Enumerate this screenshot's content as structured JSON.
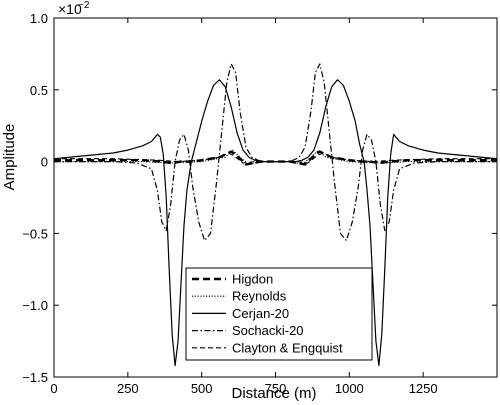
{
  "chart_data": {
    "type": "line",
    "xlabel": "Distance (m)",
    "ylabel": "Amplitude",
    "scale_note": "×10",
    "scale_exponent": "−2",
    "xlim": [
      0,
      1500
    ],
    "ylim": [
      -1.5,
      1.0
    ],
    "x_ticks": [
      0,
      250,
      500,
      750,
      1000,
      1250
    ],
    "x_tick_labels": [
      "0",
      "250",
      "500",
      "750",
      "1000",
      "1250"
    ],
    "y_ticks": [
      -1.5,
      -1.0,
      -0.5,
      0,
      0.5,
      1.0
    ],
    "y_tick_labels": [
      "−1.5",
      "−1.0",
      "−0.5",
      "0",
      "0.5",
      "1.0"
    ],
    "legend_position": "bottom-center",
    "series": [
      {
        "name": "Higdon",
        "style": "dashed-bold",
        "x": [
          0,
          300,
          360,
          400,
          430,
          460,
          500,
          560,
          600,
          620,
          650,
          700,
          750,
          800,
          850,
          880,
          900,
          940,
          1000,
          1040,
          1070,
          1100,
          1140,
          1200,
          1500
        ],
        "y": [
          0.01,
          0.01,
          0.0,
          -0.01,
          0.0,
          0.0,
          0.01,
          0.03,
          0.07,
          0.04,
          -0.02,
          0.0,
          0.0,
          0.0,
          -0.02,
          0.04,
          0.07,
          0.03,
          0.01,
          0.0,
          0.0,
          -0.01,
          0.0,
          0.01,
          0.01
        ]
      },
      {
        "name": "Reynolds",
        "style": "dotted",
        "x": [
          0,
          300,
          400,
          500,
          580,
          605,
          630,
          660,
          700,
          750,
          800,
          840,
          870,
          895,
          920,
          1000,
          1100,
          1200,
          1500
        ],
        "y": [
          0.0,
          0.0,
          -0.01,
          0.0,
          0.03,
          0.08,
          0.03,
          -0.02,
          0.0,
          0.0,
          0.0,
          -0.02,
          0.03,
          0.08,
          0.03,
          0.0,
          -0.01,
          0.0,
          0.0
        ]
      },
      {
        "name": "Cerjan-20",
        "style": "solid",
        "x": [
          0,
          100,
          200,
          250,
          300,
          330,
          350,
          360,
          370,
          380,
          390,
          400,
          410,
          420,
          430,
          440,
          450,
          465,
          480,
          500,
          520,
          540,
          560,
          580,
          600,
          620,
          640,
          660,
          680,
          700,
          720,
          750,
          780,
          800,
          820,
          840,
          860,
          880,
          900,
          920,
          940,
          960,
          980,
          1000,
          1020,
          1035,
          1050,
          1060,
          1070,
          1080,
          1090,
          1100,
          1110,
          1120,
          1130,
          1140,
          1150,
          1170,
          1200,
          1250,
          1300,
          1400,
          1500
        ],
        "y": [
          0.02,
          0.04,
          0.06,
          0.08,
          0.11,
          0.14,
          0.19,
          0.17,
          0.05,
          -0.25,
          -0.75,
          -1.2,
          -1.42,
          -1.25,
          -0.85,
          -0.45,
          -0.2,
          0.0,
          0.12,
          0.28,
          0.42,
          0.53,
          0.57,
          0.52,
          0.38,
          0.2,
          0.08,
          0.03,
          0.01,
          0.0,
          0.0,
          0.0,
          0.0,
          0.0,
          0.0,
          0.01,
          0.03,
          0.08,
          0.2,
          0.38,
          0.52,
          0.57,
          0.53,
          0.42,
          0.28,
          0.12,
          0.0,
          -0.2,
          -0.45,
          -0.85,
          -1.25,
          -1.42,
          -1.2,
          -0.75,
          -0.25,
          0.05,
          0.19,
          0.14,
          0.11,
          0.08,
          0.06,
          0.04,
          0.02
        ]
      },
      {
        "name": "Sochacki-20",
        "style": "dashdot",
        "x": [
          0,
          100,
          200,
          280,
          330,
          350,
          365,
          380,
          395,
          410,
          425,
          440,
          455,
          470,
          490,
          510,
          530,
          550,
          570,
          585,
          600,
          615,
          630,
          650,
          670,
          690,
          710,
          730,
          750,
          770,
          790,
          810,
          830,
          850,
          870,
          885,
          900,
          915,
          930,
          950,
          970,
          990,
          1010,
          1030,
          1045,
          1060,
          1075,
          1090,
          1105,
          1120,
          1135,
          1150,
          1170,
          1220,
          1300,
          1400,
          1500
        ],
        "y": [
          0.0,
          0.0,
          0.0,
          -0.01,
          -0.05,
          -0.2,
          -0.42,
          -0.48,
          -0.3,
          0.0,
          0.15,
          0.19,
          0.08,
          -0.18,
          -0.42,
          -0.55,
          -0.5,
          -0.15,
          0.25,
          0.55,
          0.68,
          0.62,
          0.35,
          0.1,
          0.03,
          0.01,
          0.0,
          0.0,
          0.0,
          0.0,
          0.0,
          0.01,
          0.03,
          0.1,
          0.35,
          0.62,
          0.68,
          0.55,
          0.25,
          -0.15,
          -0.5,
          -0.55,
          -0.42,
          -0.18,
          0.08,
          0.19,
          0.15,
          0.0,
          -0.3,
          -0.48,
          -0.42,
          -0.2,
          -0.05,
          -0.01,
          0.0,
          0.0,
          0.0
        ]
      },
      {
        "name": "Clayton & Engquist",
        "style": "dashed",
        "x": [
          0,
          200,
          350,
          420,
          500,
          560,
          590,
          610,
          640,
          680,
          750,
          820,
          860,
          890,
          910,
          940,
          1000,
          1080,
          1150,
          1300,
          1500
        ],
        "y": [
          0.02,
          0.02,
          0.01,
          0.0,
          0.01,
          0.03,
          0.06,
          0.04,
          -0.01,
          0.0,
          0.0,
          0.0,
          -0.01,
          0.04,
          0.06,
          0.03,
          0.01,
          0.0,
          0.01,
          0.02,
          0.02
        ]
      }
    ]
  }
}
